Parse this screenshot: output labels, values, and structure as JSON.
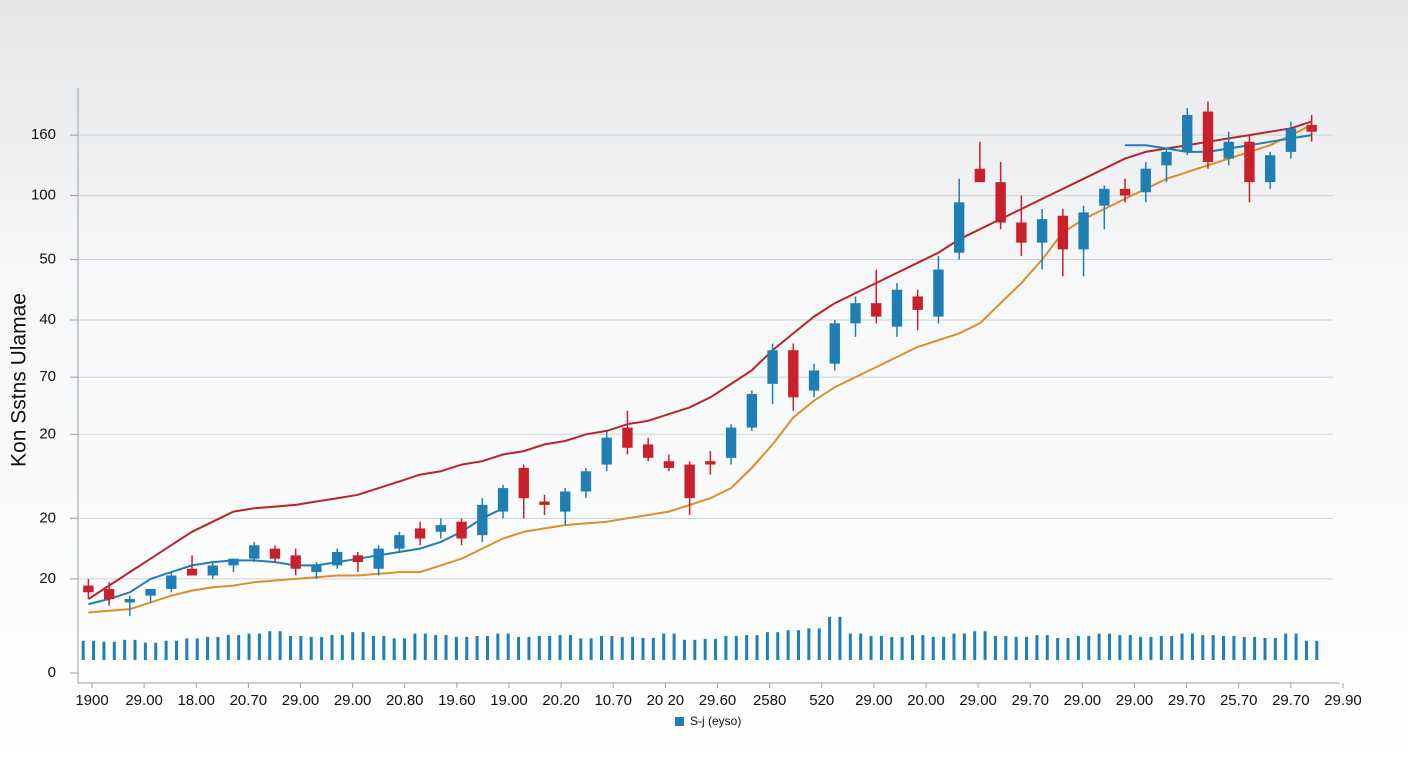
{
  "chart_data": {
    "type": "candlestick",
    "y_label": "Kon Sstns Ulamae",
    "x_labels": [
      "1900",
      "29.00",
      "18.00",
      "20.70",
      "29.00",
      "29.00",
      "20.80",
      "19.60",
      "19.00",
      "20.20",
      "10.70",
      "20 20",
      "29.60",
      "2580",
      "520",
      "29.00",
      "20.00",
      "29.00",
      "29.70",
      "29.00",
      "29.00",
      "29.70",
      "25.70",
      "29.70",
      "29.90"
    ],
    "ylim": [
      0,
      174
    ],
    "yticks": [
      0,
      {
        "value": 28,
        "label": "20"
      },
      {
        "value": 46,
        "label": "20"
      },
      {
        "value": 71,
        "label": "20"
      },
      {
        "value": 88,
        "label": "70"
      },
      {
        "value": 105,
        "label": "40"
      },
      {
        "value": 123,
        "label": "50"
      },
      {
        "value": 142,
        "label": "100"
      },
      160
    ],
    "grid": true,
    "up_color": "#1f7fb4",
    "down_color": "#c9202b",
    "candles": [
      [
        26,
        28,
        22,
        24
      ],
      [
        25,
        27,
        20,
        22
      ],
      [
        21,
        23,
        17,
        22
      ],
      [
        23,
        25,
        21,
        25
      ],
      [
        25,
        30,
        24,
        29
      ],
      [
        31,
        35,
        29,
        29
      ],
      [
        29,
        33,
        28,
        32
      ],
      [
        32,
        34,
        30,
        34
      ],
      [
        34,
        39,
        33,
        38
      ],
      [
        37,
        38,
        33,
        34
      ],
      [
        35,
        37,
        29,
        31
      ],
      [
        30,
        33,
        28,
        32
      ],
      [
        32,
        37,
        31,
        36
      ],
      [
        35,
        36,
        30,
        33
      ],
      [
        31,
        38,
        29,
        37
      ],
      [
        37,
        42,
        36,
        41
      ],
      [
        43,
        45,
        38,
        40
      ],
      [
        42,
        46,
        40,
        44
      ],
      [
        45,
        46,
        38,
        40
      ],
      [
        41,
        52,
        39,
        50
      ],
      [
        48,
        56,
        46,
        55
      ],
      [
        61,
        62,
        46,
        52
      ],
      [
        51,
        53,
        47,
        50
      ],
      [
        48,
        55,
        44,
        54
      ],
      [
        54,
        61,
        52,
        60
      ],
      [
        62,
        72,
        60,
        70
      ],
      [
        73,
        78,
        65,
        67
      ],
      [
        68,
        70,
        63,
        64
      ],
      [
        63,
        65,
        60,
        61
      ],
      [
        62,
        63,
        47,
        52
      ],
      [
        63,
        66,
        59,
        62
      ],
      [
        64,
        74,
        62,
        73
      ],
      [
        73,
        84,
        72,
        83
      ],
      [
        86,
        98,
        80,
        96
      ],
      [
        96,
        98,
        78,
        82
      ],
      [
        84,
        92,
        82,
        90
      ],
      [
        92,
        105,
        90,
        104
      ],
      [
        104,
        112,
        100,
        110
      ],
      [
        110,
        120,
        104,
        106
      ],
      [
        103,
        116,
        100,
        114
      ],
      [
        112,
        114,
        102,
        108
      ],
      [
        106,
        124,
        104,
        120
      ],
      [
        125,
        147,
        123,
        140
      ],
      [
        150,
        158,
        146,
        146
      ],
      [
        146,
        152,
        132,
        134
      ],
      [
        134,
        142,
        124,
        128
      ],
      [
        128,
        138,
        120,
        135
      ],
      [
        136,
        138,
        118,
        126
      ],
      [
        126,
        139,
        118,
        137
      ],
      [
        139,
        145,
        132,
        144
      ],
      [
        144,
        147,
        140,
        142
      ],
      [
        143,
        152,
        140,
        150
      ],
      [
        151,
        156,
        146,
        155
      ],
      [
        155,
        168,
        154,
        166
      ],
      [
        167,
        170,
        150,
        152
      ],
      [
        153,
        161,
        151,
        158
      ],
      [
        158,
        160,
        140,
        146
      ],
      [
        146,
        155,
        144,
        154
      ],
      [
        155,
        164,
        153,
        162
      ],
      [
        163,
        166,
        158,
        161
      ]
    ],
    "series": [
      {
        "color": "#b8242c",
        "values": [
          22,
          26,
          30,
          34,
          38,
          42,
          45,
          48,
          49,
          49.5,
          50,
          51,
          52,
          53,
          55,
          57,
          59,
          60,
          62,
          63,
          65,
          66,
          68,
          69,
          71,
          72,
          74,
          75,
          77,
          79,
          82,
          86,
          90,
          96,
          101,
          106,
          110,
          113,
          116,
          119,
          122,
          125,
          129,
          132,
          135,
          138,
          141,
          144,
          147,
          150,
          153,
          155,
          156,
          157,
          158,
          159,
          160,
          161,
          162,
          164
        ]
      },
      {
        "color": "#dc8f28",
        "values": [
          18,
          18.5,
          19,
          21,
          23,
          24.5,
          25.5,
          26,
          27,
          27.5,
          28,
          28.5,
          29,
          29,
          29.5,
          30,
          30,
          32,
          34,
          37,
          40,
          42,
          43,
          44,
          44.5,
          45,
          46,
          47,
          48,
          50,
          52,
          55,
          61,
          68,
          76,
          81,
          85,
          88,
          91,
          94,
          97,
          99,
          101,
          104,
          110,
          116,
          123,
          131,
          135,
          138,
          141,
          144,
          147,
          149,
          151,
          153,
          155,
          157,
          160,
          163
        ]
      },
      {
        "color": "#1f7fb4",
        "values": [
          20.5,
          22,
          24,
          28,
          30,
          32,
          33,
          33.5,
          33.5,
          33,
          32,
          32,
          33,
          34,
          35,
          36,
          37,
          39,
          42,
          46,
          49,
          null,
          null,
          null,
          null,
          null,
          null,
          null,
          null,
          null,
          null,
          null,
          null,
          null,
          null,
          null,
          null,
          null,
          null,
          null,
          null,
          null,
          null,
          null,
          null,
          null,
          null,
          null,
          null,
          null,
          157,
          157,
          156,
          155,
          155,
          156,
          157,
          158,
          159,
          160
        ]
      }
    ],
    "volume": {
      "name": "S-j (eyso)",
      "color": "#1f7fb4",
      "vlim": [
        0,
        100
      ],
      "values": [
        40,
        38,
        42,
        36,
        40,
        45,
        48,
        52,
        55,
        60,
        50,
        48,
        52,
        58,
        50,
        45,
        55,
        52,
        48,
        50,
        55,
        48,
        50,
        52,
        45,
        50,
        48,
        46,
        55,
        42,
        44,
        50,
        52,
        58,
        62,
        66,
        90,
        55,
        50,
        48,
        52,
        48,
        55,
        60,
        50,
        48,
        52,
        46,
        50,
        55,
        52,
        48,
        50,
        55,
        52,
        50,
        48,
        46,
        55,
        40
      ]
    }
  }
}
